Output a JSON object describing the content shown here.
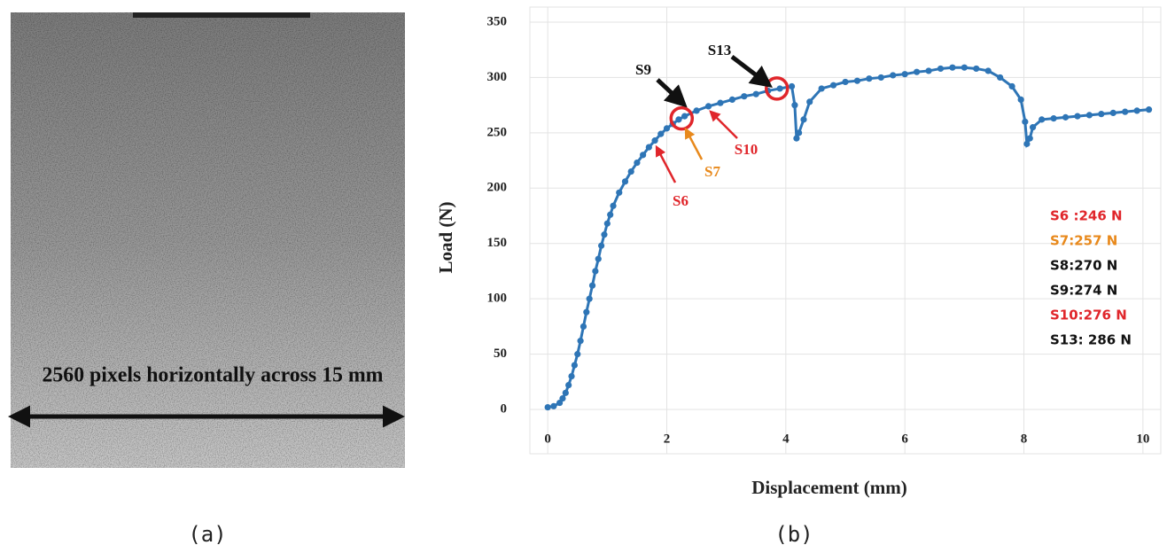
{
  "panel_a": {
    "annotation": "2560 pixels horizontally across 15 mm",
    "label": "(a)"
  },
  "chart_data": {
    "type": "line",
    "label": "(b)",
    "x_label": "Displacement (mm)",
    "y_label": "Load (N)",
    "xlim": [
      -0.3,
      10.3
    ],
    "xticks": [
      0,
      2,
      4,
      6,
      8,
      10
    ],
    "ylim": [
      -40,
      350
    ],
    "yticks": [
      0,
      50,
      100,
      150,
      200,
      250,
      300,
      350
    ],
    "grid": true,
    "x": [
      0,
      0.1,
      0.2,
      0.25,
      0.3,
      0.35,
      0.4,
      0.45,
      0.5,
      0.55,
      0.6,
      0.65,
      0.7,
      0.75,
      0.8,
      0.85,
      0.9,
      0.95,
      1.0,
      1.05,
      1.1,
      1.2,
      1.3,
      1.4,
      1.5,
      1.6,
      1.7,
      1.8,
      1.9,
      2.0,
      2.1,
      2.2,
      2.3,
      2.5,
      2.7,
      2.9,
      3.1,
      3.3,
      3.5,
      3.7,
      3.9,
      4.1,
      4.15,
      4.18,
      4.22,
      4.3,
      4.4,
      4.6,
      4.8,
      5.0,
      5.2,
      5.4,
      5.6,
      5.8,
      6.0,
      6.2,
      6.4,
      6.6,
      6.8,
      7.0,
      7.2,
      7.4,
      7.6,
      7.8,
      7.95,
      8.02,
      8.05,
      8.1,
      8.15,
      8.3,
      8.5,
      8.7,
      8.9,
      9.1,
      9.3,
      9.5,
      9.7,
      9.9,
      10.1
    ],
    "series": [
      {
        "color": "#2e75b6",
        "values": [
          2,
          3,
          6,
          10,
          15,
          22,
          30,
          40,
          50,
          62,
          75,
          88,
          100,
          112,
          125,
          136,
          148,
          158,
          168,
          176,
          184,
          196,
          206,
          215,
          223,
          230,
          237,
          243,
          249,
          254,
          258,
          262,
          265,
          270,
          274,
          277,
          280,
          283,
          285,
          288,
          290,
          292,
          275,
          245,
          250,
          262,
          278,
          290,
          293,
          296,
          297,
          299,
          300,
          302,
          303,
          305,
          306,
          308,
          309,
          309,
          308,
          306,
          300,
          292,
          280,
          260,
          240,
          245,
          255,
          262,
          263,
          264,
          265,
          266,
          267,
          268,
          269,
          270,
          271
        ]
      }
    ],
    "annotations": [
      {
        "text": "S9",
        "color": "#111111"
      },
      {
        "text": "S13",
        "color": "#111111"
      },
      {
        "text": "S6",
        "color": "#e0262b"
      },
      {
        "text": "S7",
        "color": "#e8891c"
      },
      {
        "text": "S10",
        "color": "#e0262b"
      }
    ],
    "notes": [
      {
        "text": "S6 :246 N",
        "color": "#e0262b"
      },
      {
        "text": "S7:257 N",
        "color": "#e8891c"
      },
      {
        "text": "S8:270 N",
        "color": "#111111"
      },
      {
        "text": "S9:274 N",
        "color": "#111111"
      },
      {
        "text": "S10:276 N",
        "color": "#e0262b"
      },
      {
        "text": "S13: 286 N",
        "color": "#111111"
      }
    ]
  }
}
